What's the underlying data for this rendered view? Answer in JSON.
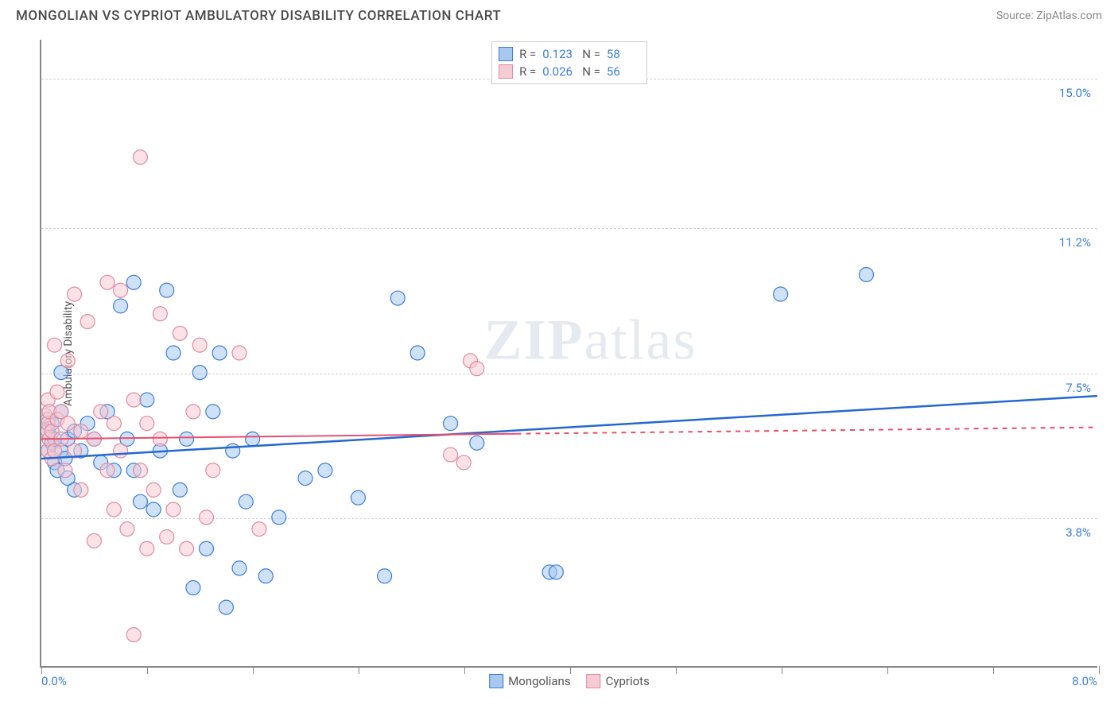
{
  "header": {
    "title": "MONGOLIAN VS CYPRIOT AMBULATORY DISABILITY CORRELATION CHART",
    "source": "Source: ZipAtlas.com"
  },
  "watermark": {
    "left": "ZIP",
    "right": "atlas"
  },
  "chart": {
    "type": "scatter",
    "y_axis_label": "Ambulatory Disability",
    "xlim": [
      0.0,
      8.0
    ],
    "ylim": [
      0.0,
      16.0
    ],
    "x_min_label": "0.0%",
    "x_max_label": "8.0%",
    "y_gridlines": [
      {
        "value": 3.8,
        "label": "3.8%"
      },
      {
        "value": 7.5,
        "label": "7.5%"
      },
      {
        "value": 11.2,
        "label": "11.2%"
      },
      {
        "value": 15.0,
        "label": "15.0%"
      }
    ],
    "x_ticks": [
      0,
      0.8,
      1.6,
      2.4,
      3.2,
      4.0,
      4.8,
      5.6,
      6.4,
      7.2,
      8.0
    ],
    "background_color": "#ffffff",
    "grid_color": "#d0d0d0",
    "axis_color": "#888888",
    "marker_radius": 9,
    "marker_opacity": 0.55,
    "series": [
      {
        "name": "Mongolians",
        "fill_color": "#a8c8f0",
        "stroke_color": "#3b7dd8",
        "trend_color": "#2468d0",
        "trend_width": 2.5,
        "r": "0.123",
        "n": "58",
        "trend": {
          "y_at_x0": 5.3,
          "y_at_xmax": 6.9
        },
        "points": [
          [
            0.05,
            5.5
          ],
          [
            0.05,
            6.0
          ],
          [
            0.05,
            6.3
          ],
          [
            0.08,
            5.7
          ],
          [
            0.08,
            6.2
          ],
          [
            0.1,
            5.2
          ],
          [
            0.1,
            5.8
          ],
          [
            0.12,
            5.0
          ],
          [
            0.15,
            5.5
          ],
          [
            0.15,
            6.5
          ],
          [
            0.15,
            7.5
          ],
          [
            0.18,
            5.3
          ],
          [
            0.2,
            5.8
          ],
          [
            0.2,
            4.8
          ],
          [
            0.25,
            6.0
          ],
          [
            0.25,
            4.5
          ],
          [
            0.3,
            5.5
          ],
          [
            0.35,
            6.2
          ],
          [
            0.4,
            5.8
          ],
          [
            0.45,
            5.2
          ],
          [
            0.5,
            6.5
          ],
          [
            0.55,
            5.0
          ],
          [
            0.6,
            9.2
          ],
          [
            0.65,
            5.8
          ],
          [
            0.7,
            9.8
          ],
          [
            0.7,
            5.0
          ],
          [
            0.75,
            4.2
          ],
          [
            0.8,
            6.8
          ],
          [
            0.85,
            4.0
          ],
          [
            0.9,
            5.5
          ],
          [
            0.95,
            9.6
          ],
          [
            1.0,
            8.0
          ],
          [
            1.05,
            4.5
          ],
          [
            1.1,
            5.8
          ],
          [
            1.15,
            2.0
          ],
          [
            1.2,
            7.5
          ],
          [
            1.25,
            3.0
          ],
          [
            1.3,
            6.5
          ],
          [
            1.35,
            8.0
          ],
          [
            1.4,
            1.5
          ],
          [
            1.45,
            5.5
          ],
          [
            1.5,
            2.5
          ],
          [
            1.55,
            4.2
          ],
          [
            1.6,
            5.8
          ],
          [
            1.7,
            2.3
          ],
          [
            1.8,
            3.8
          ],
          [
            2.0,
            4.8
          ],
          [
            2.15,
            5.0
          ],
          [
            2.4,
            4.3
          ],
          [
            2.6,
            2.3
          ],
          [
            2.7,
            9.4
          ],
          [
            2.85,
            8.0
          ],
          [
            3.1,
            6.2
          ],
          [
            3.3,
            5.7
          ],
          [
            3.85,
            2.4
          ],
          [
            3.9,
            2.4
          ],
          [
            5.6,
            9.5
          ],
          [
            6.25,
            10.0
          ]
        ]
      },
      {
        "name": "Cypriots",
        "fill_color": "#f5cbd4",
        "stroke_color": "#e08aa0",
        "trend_color": "#e84e70",
        "trend_width": 2.0,
        "r": "0.026",
        "n": "56",
        "trend": {
          "y_at_x0": 5.8,
          "y_at_xmax": 6.1
        },
        "trend_dash_after": 3.6,
        "points": [
          [
            0.03,
            6.0
          ],
          [
            0.03,
            6.4
          ],
          [
            0.05,
            5.5
          ],
          [
            0.05,
            6.2
          ],
          [
            0.05,
            6.8
          ],
          [
            0.06,
            5.8
          ],
          [
            0.06,
            6.5
          ],
          [
            0.08,
            5.3
          ],
          [
            0.08,
            6.0
          ],
          [
            0.1,
            5.5
          ],
          [
            0.1,
            8.2
          ],
          [
            0.12,
            6.3
          ],
          [
            0.12,
            7.0
          ],
          [
            0.15,
            5.8
          ],
          [
            0.15,
            6.5
          ],
          [
            0.18,
            5.0
          ],
          [
            0.2,
            6.2
          ],
          [
            0.2,
            7.8
          ],
          [
            0.25,
            5.5
          ],
          [
            0.25,
            9.5
          ],
          [
            0.3,
            6.0
          ],
          [
            0.3,
            4.5
          ],
          [
            0.35,
            8.8
          ],
          [
            0.4,
            5.8
          ],
          [
            0.4,
            3.2
          ],
          [
            0.45,
            6.5
          ],
          [
            0.5,
            5.0
          ],
          [
            0.5,
            9.8
          ],
          [
            0.55,
            6.2
          ],
          [
            0.55,
            4.0
          ],
          [
            0.6,
            5.5
          ],
          [
            0.6,
            9.6
          ],
          [
            0.65,
            3.5
          ],
          [
            0.7,
            6.8
          ],
          [
            0.7,
            0.8
          ],
          [
            0.75,
            5.0
          ],
          [
            0.75,
            13.0
          ],
          [
            0.8,
            6.2
          ],
          [
            0.8,
            3.0
          ],
          [
            0.85,
            4.5
          ],
          [
            0.9,
            5.8
          ],
          [
            0.9,
            9.0
          ],
          [
            0.95,
            3.3
          ],
          [
            1.0,
            4.0
          ],
          [
            1.05,
            8.5
          ],
          [
            1.1,
            3.0
          ],
          [
            1.15,
            6.5
          ],
          [
            1.2,
            8.2
          ],
          [
            1.25,
            3.8
          ],
          [
            1.3,
            5.0
          ],
          [
            1.5,
            8.0
          ],
          [
            1.65,
            3.5
          ],
          [
            3.1,
            5.4
          ],
          [
            3.2,
            5.2
          ],
          [
            3.25,
            7.8
          ],
          [
            3.3,
            7.6
          ]
        ]
      }
    ],
    "legend_bottom": [
      {
        "label": "Mongolians",
        "fill": "#a8c8f0",
        "stroke": "#3b7dd8"
      },
      {
        "label": "Cypriots",
        "fill": "#f5cbd4",
        "stroke": "#e08aa0"
      }
    ]
  }
}
